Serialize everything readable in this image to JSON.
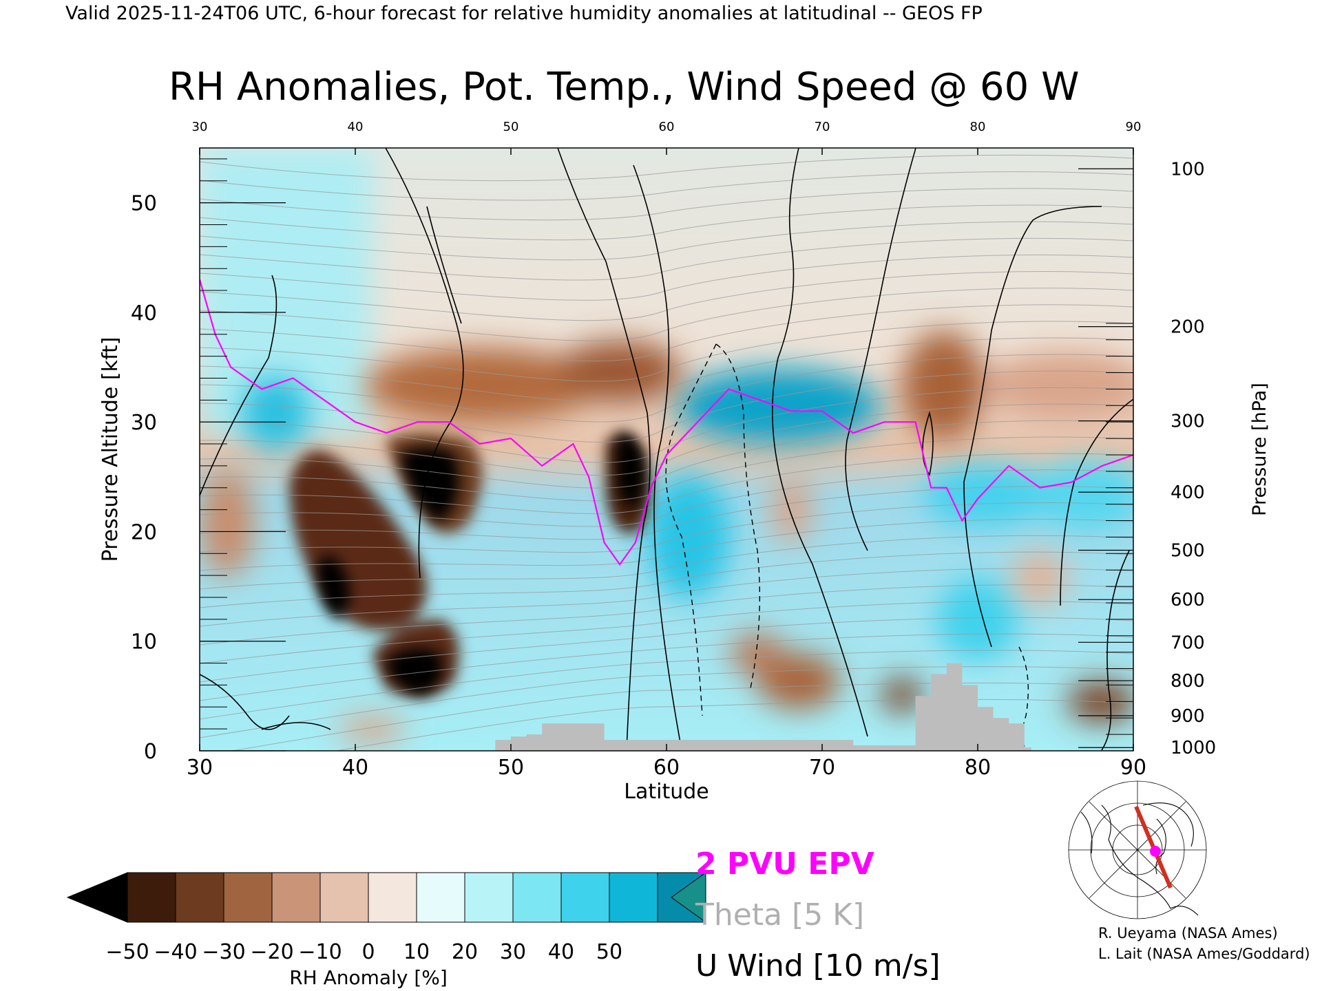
{
  "header": {
    "valid_line": "Valid 2025-11-24T06 UTC, 6-hour forecast for relative humidity anomalies at latitudinal -- GEOS FP",
    "title": "RH Anomalies, Pot. Temp., Wind Speed @ 60 W"
  },
  "chart_data": {
    "type": "heatmap",
    "description_field": "RH anomaly cross-section with overlaid potential temperature, U wind contours and 2 PVU line",
    "xlabel": "Latitude",
    "ylabel_left": "Pressure Altitude [kft]",
    "ylabel_right": "Pressure [hPa]",
    "xlim": [
      30,
      90
    ],
    "ylim": [
      0,
      55
    ],
    "x_ticks": [
      "30",
      "40",
      "50",
      "60",
      "70",
      "80",
      "90"
    ],
    "x_values": [
      30,
      40,
      50,
      60,
      70,
      80,
      90
    ],
    "y_ticks": [
      "0",
      "10",
      "20",
      "30",
      "40",
      "50"
    ],
    "y_values": [
      0,
      10,
      20,
      30,
      40,
      50
    ],
    "pressure_ticks": [
      {
        "label": "100",
        "kft": 53.1
      },
      {
        "label": "200",
        "kft": 38.7
      },
      {
        "label": "300",
        "kft": 30.1
      },
      {
        "label": "400",
        "kft": 23.6
      },
      {
        "label": "500",
        "kft": 18.3
      },
      {
        "label": "600",
        "kft": 13.8
      },
      {
        "label": "700",
        "kft": 9.9
      },
      {
        "label": "800",
        "kft": 6.4
      },
      {
        "label": "900",
        "kft": 3.2
      },
      {
        "label": "1000",
        "kft": 0.3
      }
    ],
    "pv_2pvu_line": [
      [
        30,
        43
      ],
      [
        31,
        38
      ],
      [
        32,
        35
      ],
      [
        33,
        34
      ],
      [
        34,
        33
      ],
      [
        36,
        34
      ],
      [
        38,
        32
      ],
      [
        40,
        30
      ],
      [
        42,
        29
      ],
      [
        44,
        30
      ],
      [
        46,
        30
      ],
      [
        48,
        28
      ],
      [
        50,
        28.5
      ],
      [
        52,
        26
      ],
      [
        54,
        28
      ],
      [
        55,
        25
      ],
      [
        56,
        19
      ],
      [
        57,
        17
      ],
      [
        58,
        19
      ],
      [
        59,
        24
      ],
      [
        60,
        27
      ],
      [
        62,
        30
      ],
      [
        64,
        33
      ],
      [
        66,
        32
      ],
      [
        68,
        31
      ],
      [
        70,
        31
      ],
      [
        72,
        29
      ],
      [
        74,
        30
      ],
      [
        76,
        30
      ],
      [
        77,
        24
      ],
      [
        78,
        24
      ],
      [
        79,
        21
      ],
      [
        80,
        23
      ],
      [
        82,
        26
      ],
      [
        84,
        24
      ],
      [
        86,
        24.5
      ],
      [
        88,
        26
      ],
      [
        90,
        27
      ]
    ],
    "terrain_kft": [
      [
        49,
        1
      ],
      [
        50,
        1.3
      ],
      [
        51,
        1.5
      ],
      [
        52,
        2.5
      ],
      [
        55,
        2.5
      ],
      [
        56,
        1
      ],
      [
        70,
        1
      ],
      [
        71,
        1
      ],
      [
        72,
        0.5
      ],
      [
        75,
        0.5
      ],
      [
        76,
        5
      ],
      [
        77,
        7
      ],
      [
        78,
        8
      ],
      [
        79,
        6
      ],
      [
        80,
        4
      ],
      [
        81,
        3
      ],
      [
        82,
        2.5
      ],
      [
        83,
        0.3
      ]
    ],
    "colorbar": {
      "label": "RH Anomaly [%]",
      "ticks": [
        "−50",
        "−40",
        "−30",
        "−20",
        "−10",
        "0",
        "10",
        "20",
        "30",
        "40",
        "50"
      ],
      "colors": [
        "#000000",
        "#3d1c0c",
        "#6d3b1f",
        "#a06540",
        "#c99477",
        "#e4c2ae",
        "#f4e7de",
        "#e6fbfb",
        "#b8f3f8",
        "#7de6f3",
        "#3fd2ec",
        "#10b6d8",
        "#068cab",
        "#17908a"
      ]
    },
    "legend": [
      {
        "name": "2 PVU EPV",
        "color": "#ff00ff"
      },
      {
        "name": "Theta [5 K]",
        "color": "#b0b0b0"
      },
      {
        "name": "U Wind [10 m/s]",
        "color": "#000000"
      }
    ]
  },
  "credits": [
    "R. Ueyama (NASA Ames)",
    "L. Lait (NASA Ames/Goddard)"
  ]
}
